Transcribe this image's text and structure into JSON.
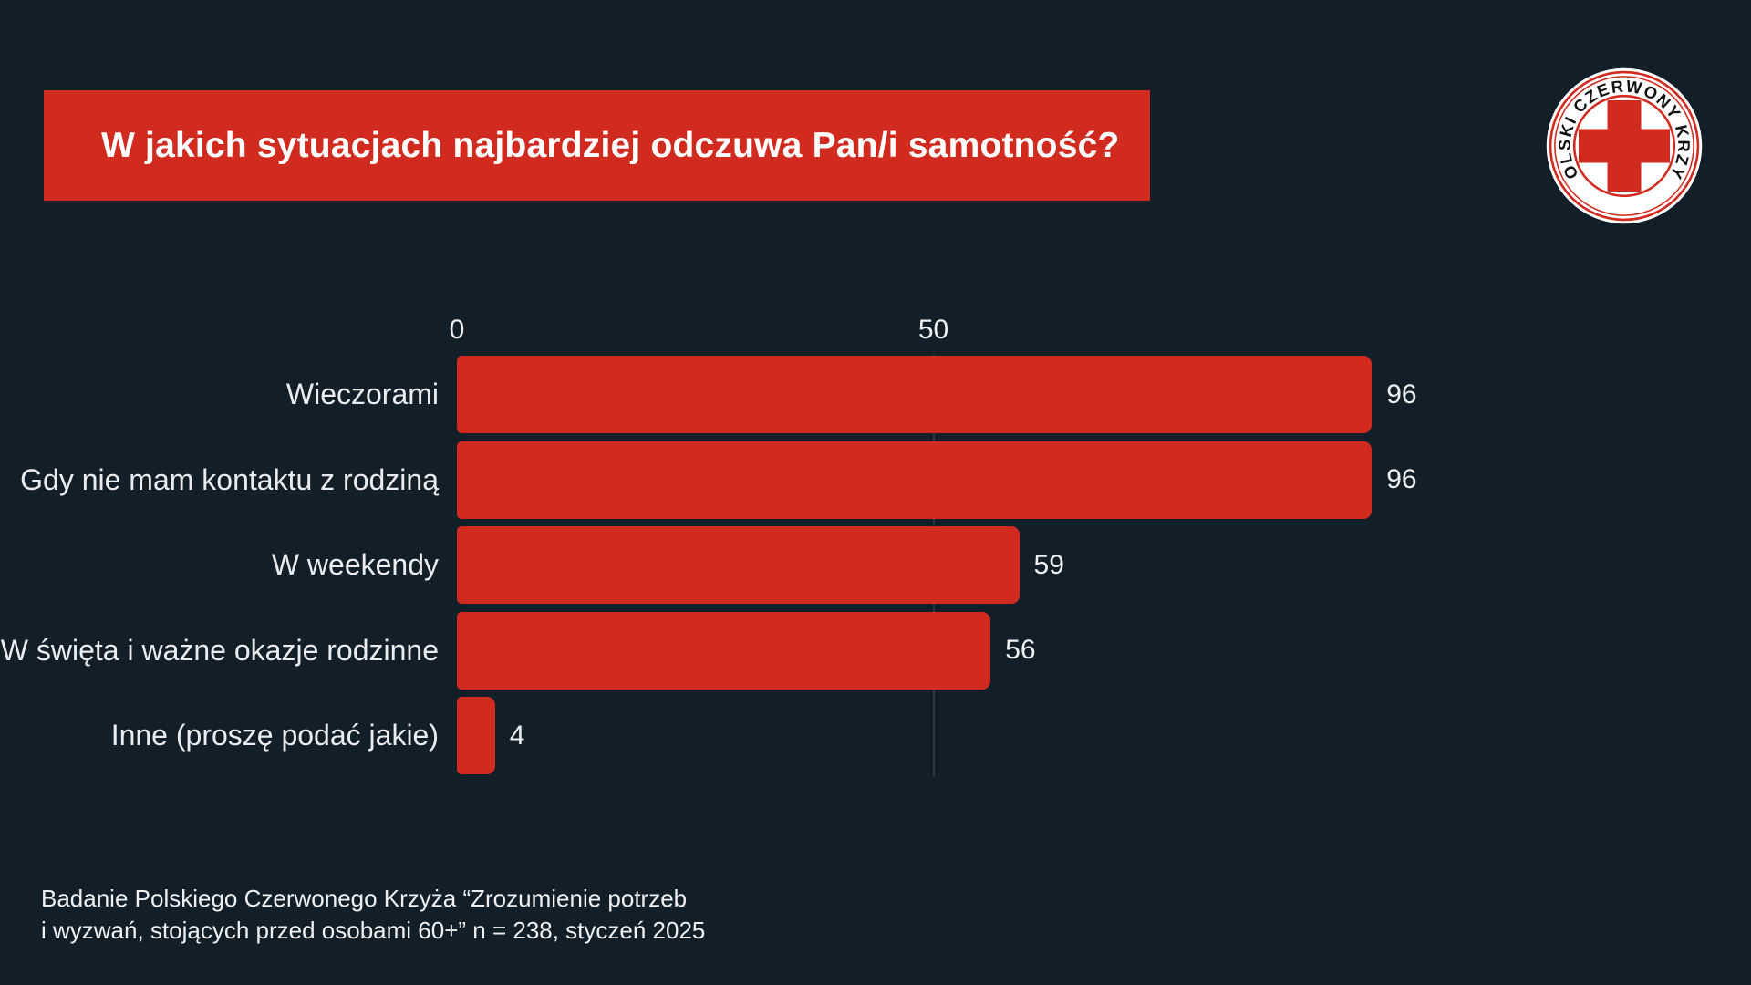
{
  "header": {
    "title": "W jakich sytuacjach najbardziej odczuwa Pan/i samotność?"
  },
  "logo": {
    "name": "Polski Czerwony Krzyż",
    "ring_text": "POLSKI CZERWONY KRZYŻ"
  },
  "chart_data": {
    "type": "bar",
    "orientation": "horizontal",
    "title": "W jakich sytuacjach najbardziej odczuwa Pan/i samotność?",
    "categories": [
      "Wieczorami",
      "Gdy nie mam kontaktu z rodziną",
      "W weekendy",
      "W święta i ważne okazje rodzinne",
      "Inne (proszę podać jakie)"
    ],
    "values": [
      96,
      96,
      59,
      56,
      4
    ],
    "x_axis": {
      "ticks": [
        0,
        50
      ],
      "range": [
        0,
        101
      ]
    },
    "value_labels_shown": true,
    "bar_color": "#d12b20",
    "grid": "single vertical gridline at x=50",
    "legend": "none"
  },
  "footer": {
    "line1": "Badanie Polskiego Czerwonego Krzyża “Zrozumienie potrzeb",
    "line2": "i wyzwań, stojących przed osobami 60+”  n = 238, styczeń 2025"
  },
  "colors": {
    "background": "#121e28",
    "accent_red": "#d12b20",
    "text": "#eef1f4",
    "gridline": "#2c3844",
    "logo_text": "#111111"
  }
}
